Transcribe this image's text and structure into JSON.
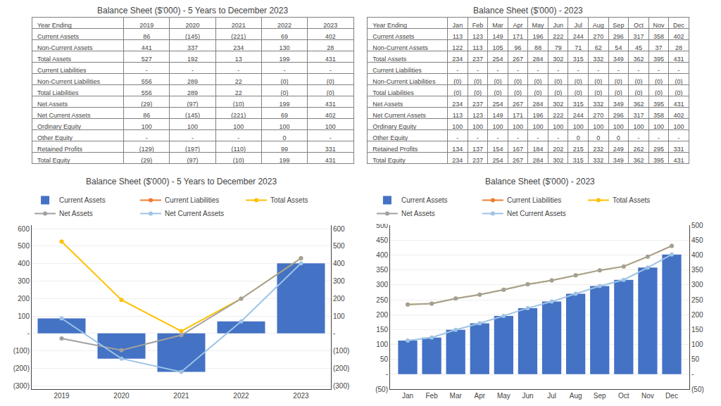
{
  "chart_data": [
    {
      "type": "table",
      "title": "Balance Sheet ($'000) - 5 Years to December 2023",
      "xlabel": "Year Ending",
      "categories": [
        "2019",
        "2020",
        "2021",
        "2022",
        "2023"
      ],
      "series": [
        {
          "name": "Current Assets",
          "values": [
            "86",
            "(145)",
            "(221)",
            "69",
            "402"
          ]
        },
        {
          "name": "Non-Current Assets",
          "values": [
            "441",
            "337",
            "234",
            "130",
            "28"
          ]
        },
        {
          "name": "Total Assets",
          "values": [
            "527",
            "192",
            "13",
            "199",
            "431"
          ]
        },
        {
          "name": "Current Liabilities",
          "values": [
            "-",
            "-",
            "-",
            "-",
            "-"
          ]
        },
        {
          "name": "Non-Current Liabilities",
          "values": [
            "556",
            "289",
            "22",
            "(0)",
            "(0)"
          ]
        },
        {
          "name": "Total Liabilities",
          "values": [
            "556",
            "289",
            "22",
            "(0)",
            "(0)"
          ]
        },
        {
          "name": "Net Assets",
          "values": [
            "(29)",
            "(97)",
            "(10)",
            "199",
            "431"
          ]
        },
        {
          "name": "Net Current Assets",
          "values": [
            "86",
            "(145)",
            "(221)",
            "69",
            "402"
          ]
        },
        {
          "name": "Ordinary Equity",
          "values": [
            "100",
            "100",
            "100",
            "100",
            "100"
          ]
        },
        {
          "name": "Other Equity",
          "values": [
            "-",
            "-",
            "-",
            "0",
            "-"
          ]
        },
        {
          "name": "Retained Profits",
          "values": [
            "(129)",
            "(197)",
            "(110)",
            "99",
            "331"
          ]
        },
        {
          "name": "Total Equity",
          "values": [
            "(29)",
            "(97)",
            "(10)",
            "199",
            "431"
          ]
        }
      ]
    },
    {
      "type": "table",
      "title": "Balance Sheet ($'000) - 2023",
      "xlabel": "Year Ending",
      "categories": [
        "Jan",
        "Feb",
        "Mar",
        "Apr",
        "May",
        "Jun",
        "Jul",
        "Aug",
        "Sep",
        "Oct",
        "Nov",
        "Dec"
      ],
      "series": [
        {
          "name": "Current Assets",
          "values": [
            "113",
            "123",
            "149",
            "171",
            "196",
            "222",
            "244",
            "270",
            "296",
            "317",
            "358",
            "402"
          ]
        },
        {
          "name": "Non-Current Assets",
          "values": [
            "122",
            "113",
            "105",
            "96",
            "88",
            "79",
            "71",
            "62",
            "54",
            "45",
            "37",
            "28"
          ]
        },
        {
          "name": "Total Assets",
          "values": [
            "234",
            "237",
            "254",
            "267",
            "284",
            "302",
            "315",
            "332",
            "349",
            "362",
            "395",
            "431"
          ]
        },
        {
          "name": "Current Liabilities",
          "values": [
            "-",
            "-",
            "-",
            "-",
            "-",
            "-",
            "-",
            "-",
            "-",
            "-",
            "-",
            "-"
          ]
        },
        {
          "name": "Non-Current Liabilities",
          "values": [
            "(0)",
            "(0)",
            "(0)",
            "(0)",
            "(0)",
            "(0)",
            "(0)",
            "(0)",
            "(0)",
            "(0)",
            "(0)",
            "(0)"
          ]
        },
        {
          "name": "Total Liabilities",
          "values": [
            "(0)",
            "(0)",
            "(0)",
            "(0)",
            "(0)",
            "(0)",
            "(0)",
            "(0)",
            "(0)",
            "(0)",
            "(0)",
            "(0)"
          ]
        },
        {
          "name": "Net Assets",
          "values": [
            "234",
            "237",
            "254",
            "267",
            "284",
            "302",
            "315",
            "332",
            "349",
            "362",
            "395",
            "431"
          ]
        },
        {
          "name": "Net Current Assets",
          "values": [
            "113",
            "123",
            "149",
            "171",
            "196",
            "222",
            "244",
            "270",
            "296",
            "317",
            "358",
            "402"
          ]
        },
        {
          "name": "Ordinary Equity",
          "values": [
            "100",
            "100",
            "100",
            "100",
            "100",
            "100",
            "100",
            "100",
            "100",
            "100",
            "100",
            "100"
          ]
        },
        {
          "name": "Other Equity",
          "values": [
            "-",
            "-",
            "-",
            "-",
            "-",
            "-",
            "0",
            "0",
            "0",
            "-",
            "-",
            "-"
          ]
        },
        {
          "name": "Retained Profits",
          "values": [
            "134",
            "137",
            "154",
            "167",
            "184",
            "202",
            "215",
            "232",
            "249",
            "262",
            "295",
            "331"
          ]
        },
        {
          "name": "Total Equity",
          "values": [
            "234",
            "237",
            "254",
            "267",
            "284",
            "302",
            "315",
            "332",
            "349",
            "362",
            "395",
            "431"
          ]
        }
      ]
    },
    {
      "type": "bar",
      "title": "Balance Sheet ($'000) - 5 Years to December 2023",
      "categories": [
        "2019",
        "2020",
        "2021",
        "2022",
        "2023"
      ],
      "series": [
        {
          "name": "Current Assets",
          "type": "bar",
          "color": "#4472c4",
          "values": [
            86,
            -145,
            -221,
            69,
            402
          ]
        },
        {
          "name": "Current Liabilities",
          "type": "line",
          "color": "#ed7d31",
          "marker": "circle",
          "axis": "y2",
          "values": [
            null,
            null,
            null,
            null,
            null
          ]
        },
        {
          "name": "Total Assets",
          "type": "line",
          "color": "#ffc000",
          "marker": "circle",
          "axis": "y2",
          "values": [
            527,
            192,
            13,
            199,
            431
          ]
        },
        {
          "name": "Net Assets",
          "type": "line",
          "color": "#a0a0a0",
          "marker": "circle",
          "axis": "y2",
          "values": [
            -29,
            -97,
            -10,
            199,
            431
          ]
        },
        {
          "name": "Net Current Assets",
          "type": "line",
          "color": "#9dc3e6",
          "marker": "circle",
          "axis": "y2",
          "values": [
            86,
            -145,
            -221,
            69,
            402
          ]
        }
      ],
      "ylim": [
        -320,
        620
      ],
      "yticks": [
        {
          "value": -300,
          "label": "(300)"
        },
        {
          "value": -200,
          "label": "(200)"
        },
        {
          "value": -100,
          "label": "(100)"
        },
        {
          "value": 0,
          "label": "-"
        },
        100,
        200,
        300,
        400,
        500,
        600
      ],
      "y2lim": [
        -320,
        620
      ],
      "y2ticks": [
        {
          "value": -300,
          "label": "(300)"
        },
        {
          "value": -200,
          "label": "(200)"
        },
        {
          "value": -100,
          "label": "(100)"
        },
        {
          "value": 0,
          "label": "-"
        },
        100,
        200,
        300,
        400,
        500,
        600
      ],
      "grid": true,
      "legend": "top"
    },
    {
      "type": "bar",
      "title": "Balance Sheet ($'000) - 2023",
      "categories": [
        "Jan",
        "Feb",
        "Mar",
        "Apr",
        "May",
        "Jun",
        "Jul",
        "Aug",
        "Sep",
        "Oct",
        "Nov",
        "Dec"
      ],
      "series": [
        {
          "name": "Current Assets",
          "type": "bar",
          "color": "#4472c4",
          "values": [
            113,
            123,
            149,
            171,
            196,
            222,
            244,
            270,
            296,
            317,
            358,
            402
          ]
        },
        {
          "name": "Current Liabilities",
          "type": "line",
          "color": "#ed7d31",
          "marker": "circle",
          "axis": "y2",
          "values": [
            null,
            null,
            null,
            null,
            null,
            null,
            null,
            null,
            null,
            null,
            null,
            null
          ]
        },
        {
          "name": "Total Assets",
          "type": "line",
          "color": "#ffc000",
          "marker": "circle",
          "axis": "y2",
          "values": [
            234,
            237,
            254,
            267,
            284,
            302,
            315,
            332,
            349,
            362,
            395,
            431
          ]
        },
        {
          "name": "Net Assets",
          "type": "line",
          "color": "#a0a0a0",
          "marker": "circle",
          "axis": "y2",
          "values": [
            234,
            237,
            254,
            267,
            284,
            302,
            315,
            332,
            349,
            362,
            395,
            431
          ]
        },
        {
          "name": "Net Current Assets",
          "type": "line",
          "color": "#9dc3e6",
          "marker": "circle",
          "axis": "y2",
          "values": [
            113,
            123,
            149,
            171,
            196,
            222,
            244,
            270,
            296,
            317,
            358,
            402
          ]
        }
      ],
      "ylim": [
        -50,
        500
      ],
      "yticks": [
        {
          "value": -50,
          "label": "(50)"
        },
        {
          "value": 0,
          "label": "-"
        },
        50,
        100,
        150,
        200,
        250,
        300,
        350,
        400,
        450,
        500
      ],
      "y2lim": [
        -50,
        500
      ],
      "y2ticks": [
        {
          "value": -50,
          "label": "(50)"
        },
        {
          "value": 0,
          "label": "-"
        },
        50,
        100,
        150,
        200,
        250,
        300,
        350,
        400,
        450,
        500
      ],
      "grid": true,
      "legend": "top"
    }
  ]
}
